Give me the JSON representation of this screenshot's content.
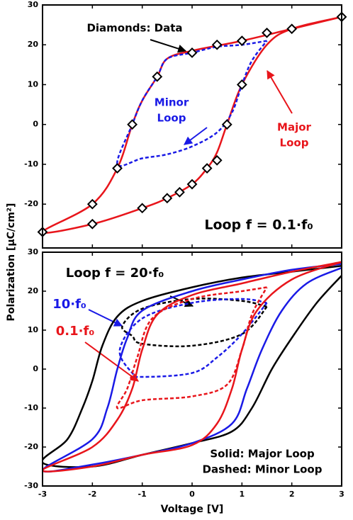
{
  "ylabel": "Polarization [μC/cm²]",
  "chart_data": [
    {
      "type": "line",
      "xlim": [
        -3,
        3
      ],
      "xticks": [
        -3,
        -2,
        -1,
        0,
        1,
        2,
        3
      ],
      "ylim": [
        -31,
        30
      ],
      "yticks": [
        -20,
        -10,
        0,
        10,
        20,
        30
      ],
      "series": [
        {
          "color": "#e8151b",
          "dash": false,
          "x": [
            3,
            2,
            1,
            0,
            -0.5,
            -0.7,
            -1,
            -1.2,
            -1.5,
            -2,
            -3,
            -2,
            -1,
            -0.5,
            0,
            0.3,
            0.5,
            0.7,
            1,
            1.5,
            2,
            3
          ],
          "values": [
            27,
            24,
            21,
            18.5,
            16.5,
            12,
            6,
            0,
            -11,
            -20,
            -27,
            -25,
            -21,
            -18.5,
            -15,
            -11,
            -7,
            0,
            10,
            20,
            24,
            27
          ]
        },
        {
          "color": "#1a1ae6",
          "dash": true,
          "x": [
            1.5,
            1,
            0.5,
            0,
            -0.5,
            -0.7,
            -1,
            -1.2,
            -1.5,
            -1,
            -0.5,
            0,
            0.5,
            0.8,
            1,
            1.2,
            1.5
          ],
          "values": [
            21,
            20,
            19.5,
            18,
            16.5,
            12,
            6,
            0,
            -10,
            -8.5,
            -7.5,
            -5.5,
            -2,
            3,
            10,
            16,
            21
          ]
        }
      ],
      "markers": {
        "color": "#000000",
        "x": [
          -3,
          -2,
          -2,
          -1.5,
          -1.2,
          -0.7,
          0,
          0.5,
          1,
          1.5,
          2,
          3,
          1,
          0.7,
          0.5,
          0.3,
          0,
          -0.25,
          -0.5,
          -1
        ],
        "values": [
          -27,
          -20,
          -25,
          -11,
          0,
          12,
          18,
          20,
          21,
          23,
          24,
          27,
          10,
          0,
          -9,
          -11,
          -15,
          -17,
          -18.5,
          -21
        ]
      },
      "annotations": [
        {
          "lines": [
            "Diamonds: Data"
          ],
          "color": "#000000"
        },
        {
          "lines": [
            "Minor",
            "Loop"
          ],
          "color": "#1a1ae6"
        },
        {
          "lines": [
            "Major",
            "Loop"
          ],
          "color": "#e8151b"
        },
        {
          "lines": [
            "Loop f = 0.1·f₀"
          ],
          "color": "#000000"
        }
      ]
    },
    {
      "type": "line",
      "xlabel": "Voltage [V]",
      "xlim": [
        -3,
        3
      ],
      "xticks": [
        -3,
        -2,
        -1,
        0,
        1,
        2,
        3
      ],
      "ylim": [
        -30,
        30
      ],
      "yticks": [
        -30,
        -20,
        -10,
        0,
        10,
        20,
        30
      ],
      "series": [
        {
          "color": "#000000",
          "dash": false,
          "x": [
            3,
            2,
            1,
            0,
            -1,
            -1.5,
            -1.8,
            -2,
            -2.2,
            -2.5,
            -3,
            -2,
            -1,
            0,
            0.8,
            1.2,
            1.6,
            2,
            2.5,
            3
          ],
          "values": [
            26.5,
            25,
            23.5,
            21,
            17.5,
            13.5,
            6,
            -3,
            -10,
            -18,
            -24,
            -25,
            -22,
            -19,
            -16,
            -10,
            0,
            8,
            17,
            24
          ]
        },
        {
          "color": "#000000",
          "dash": true,
          "x": [
            1.5,
            1,
            0,
            -1,
            -1.4,
            -1.2,
            -1,
            0,
            1,
            1.5
          ],
          "values": [
            16,
            17.5,
            18,
            15.5,
            11,
            8.5,
            6.5,
            6,
            9,
            16
          ]
        },
        {
          "color": "#1a1ae6",
          "dash": false,
          "x": [
            3,
            2,
            1,
            0,
            -1,
            -1.3,
            -1.5,
            -1.7,
            -2,
            -3,
            -2,
            -1,
            0,
            0.8,
            1.1,
            1.4,
            1.8,
            2.3,
            3
          ],
          "values": [
            27,
            25.5,
            23,
            20,
            15,
            8,
            0,
            -10,
            -18,
            -26,
            -24.5,
            -22,
            -19,
            -14,
            -5,
            5,
            15,
            22,
            26
          ]
        },
        {
          "color": "#1a1ae6",
          "dash": true,
          "x": [
            1.5,
            1,
            0,
            -1,
            -1.45,
            -1.2,
            -1,
            0,
            0.5,
            1,
            1.5
          ],
          "values": [
            17,
            18,
            17,
            13,
            5,
            -1,
            -2,
            -1,
            3,
            9,
            17
          ]
        },
        {
          "color": "#e8151b",
          "dash": false,
          "x": [
            3,
            2,
            1,
            0,
            -0.7,
            -1,
            -1.2,
            -1.5,
            -2,
            -3,
            -2,
            -1,
            0,
            0.5,
            0.8,
            1,
            1.3,
            2,
            3
          ],
          "values": [
            27.5,
            25,
            22,
            19,
            14,
            5,
            -5,
            -13,
            -20,
            -26,
            -25,
            -22,
            -19.5,
            -14,
            -5,
            5,
            15,
            23,
            27.5
          ]
        },
        {
          "color": "#e8151b",
          "dash": true,
          "x": [
            1.5,
            1,
            0,
            -0.8,
            -1.1,
            -1.3,
            -1.5,
            -1,
            0,
            0.7,
            1,
            1.2,
            1.5
          ],
          "values": [
            21,
            20,
            18,
            13,
            3,
            -5,
            -10,
            -8,
            -7,
            -4,
            5,
            14,
            21
          ]
        }
      ],
      "annotations": [
        {
          "lines": [
            "Loop f = 20·f₀"
          ],
          "color": "#000000"
        },
        {
          "lines": [
            "10·f₀"
          ],
          "color": "#1a1ae6"
        },
        {
          "lines": [
            "0.1·f₀"
          ],
          "color": "#e8151b"
        },
        {
          "lines": [
            "Solid: Major Loop",
            "Dashed: Minor Loop"
          ],
          "color": "#000000"
        }
      ]
    }
  ]
}
